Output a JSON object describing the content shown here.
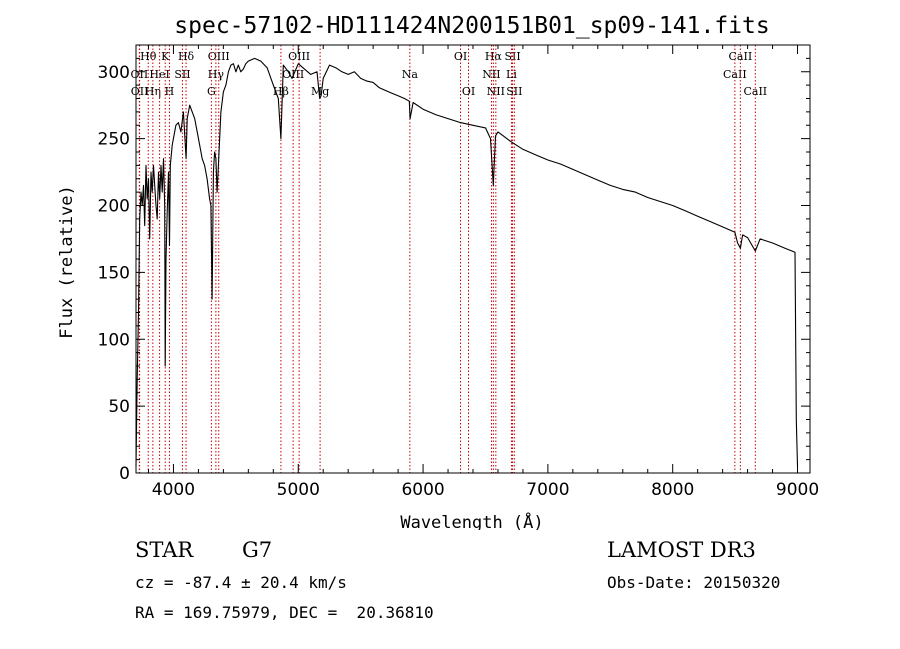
{
  "chart_data": {
    "type": "line",
    "title": "spec-57102-HD111424N200151B01_sp09-141.fits",
    "xlabel": "Wavelength (Å)",
    "ylabel": "Flux (relative)",
    "xlim": [
      3700,
      9100
    ],
    "ylim": [
      0,
      320
    ],
    "xticks": [
      4000,
      5000,
      6000,
      7000,
      8000,
      9000
    ],
    "yticks": [
      0,
      50,
      100,
      150,
      200,
      250,
      300
    ],
    "grid": false,
    "series": [
      {
        "name": "flux",
        "x": [
          3700,
          3710,
          3720,
          3730,
          3740,
          3750,
          3760,
          3770,
          3780,
          3790,
          3800,
          3810,
          3820,
          3830,
          3840,
          3850,
          3860,
          3870,
          3880,
          3890,
          3900,
          3910,
          3920,
          3930,
          3934,
          3940,
          3950,
          3960,
          3968,
          3975,
          3990,
          4000,
          4020,
          4040,
          4060,
          4080,
          4101,
          4110,
          4130,
          4150,
          4170,
          4190,
          4210,
          4230,
          4250,
          4270,
          4290,
          4300,
          4310,
          4320,
          4330,
          4340,
          4350,
          4360,
          4380,
          4400,
          4420,
          4440,
          4460,
          4480,
          4500,
          4520,
          4540,
          4560,
          4580,
          4600,
          4650,
          4700,
          4750,
          4800,
          4840,
          4861,
          4880,
          4920,
          4950,
          5000,
          5050,
          5100,
          5150,
          5172,
          5183,
          5200,
          5250,
          5300,
          5350,
          5400,
          5450,
          5500,
          5550,
          5600,
          5650,
          5700,
          5750,
          5800,
          5850,
          5890,
          5896,
          5920,
          6000,
          6100,
          6200,
          6300,
          6400,
          6500,
          6540,
          6563,
          6580,
          6600,
          6700,
          6800,
          6900,
          7000,
          7100,
          7200,
          7300,
          7400,
          7500,
          7600,
          7700,
          7800,
          7900,
          8000,
          8100,
          8200,
          8300,
          8400,
          8498,
          8520,
          8542,
          8560,
          8600,
          8662,
          8700,
          8800,
          8900,
          8980,
          8990,
          9000
        ],
        "y": [
          5,
          70,
          120,
          190,
          210,
          200,
          215,
          185,
          230,
          205,
          220,
          175,
          225,
          210,
          230,
          215,
          200,
          190,
          225,
          205,
          230,
          210,
          235,
          200,
          80,
          160,
          195,
          225,
          170,
          230,
          245,
          250,
          260,
          262,
          255,
          270,
          235,
          265,
          275,
          270,
          265,
          255,
          245,
          235,
          230,
          220,
          205,
          200,
          130,
          225,
          240,
          235,
          210,
          230,
          270,
          285,
          290,
          300,
          305,
          306,
          300,
          305,
          300,
          302,
          306,
          308,
          310,
          308,
          303,
          290,
          280,
          250,
          305,
          300,
          295,
          306,
          302,
          298,
          300,
          280,
          282,
          295,
          305,
          303,
          300,
          298,
          300,
          295,
          293,
          292,
          288,
          286,
          284,
          282,
          280,
          278,
          265,
          277,
          272,
          268,
          265,
          262,
          260,
          258,
          250,
          215,
          252,
          255,
          248,
          242,
          238,
          234,
          231,
          227,
          223,
          219,
          215,
          212,
          210,
          206,
          203,
          200,
          196,
          192,
          188,
          184,
          180,
          172,
          168,
          178,
          176,
          166,
          175,
          172,
          168,
          165,
          40,
          5
        ]
      }
    ],
    "emission_lines": [
      {
        "label": "Hθ",
        "x": 3798,
        "row": 0
      },
      {
        "label": "OII",
        "x": 3727,
        "row": 1
      },
      {
        "label": "OII",
        "x": 3729,
        "row": 2
      },
      {
        "label": "Hη",
        "x": 3835,
        "row": 2
      },
      {
        "label": "HeI",
        "x": 3889,
        "row": 1
      },
      {
        "label": "K",
        "x": 3934,
        "row": 0
      },
      {
        "label": "H",
        "x": 3968,
        "row": 2
      },
      {
        "label": "SII",
        "x": 4072,
        "row": 1
      },
      {
        "label": "Hδ",
        "x": 4101,
        "row": 0
      },
      {
        "label": "OIII",
        "x": 4363,
        "row": 0
      },
      {
        "label": "Hγ",
        "x": 4340,
        "row": 1
      },
      {
        "label": "G",
        "x": 4304,
        "row": 2
      },
      {
        "label": "Hβ",
        "x": 4861,
        "row": 2
      },
      {
        "label": "OIII",
        "x": 4959,
        "row": 1
      },
      {
        "label": "OIII",
        "x": 5007,
        "row": 0
      },
      {
        "label": "Mg",
        "x": 5175,
        "row": 2
      },
      {
        "label": "Na",
        "x": 5894,
        "row": 1
      },
      {
        "label": "OI",
        "x": 6300,
        "row": 0
      },
      {
        "label": "OI",
        "x": 6364,
        "row": 2
      },
      {
        "label": "Hα",
        "x": 6563,
        "row": 0
      },
      {
        "label": "NII",
        "x": 6548,
        "row": 1
      },
      {
        "label": "NII",
        "x": 6583,
        "row": 2
      },
      {
        "label": "SII",
        "x": 6717,
        "row": 0
      },
      {
        "label": "Li",
        "x": 6708,
        "row": 1
      },
      {
        "label": "SII",
        "x": 6731,
        "row": 2
      },
      {
        "label": "CaII",
        "x": 8498,
        "row": 1
      },
      {
        "label": "CaII",
        "x": 8542,
        "row": 0
      },
      {
        "label": "CaII",
        "x": 8662,
        "row": 2
      }
    ]
  },
  "footer": {
    "object_class": "STAR",
    "subclass": "G7",
    "survey": "LAMOST DR3",
    "cz": "cz = -87.4 ± 20.4 km/s",
    "obs_date": "Obs-Date: 20150320",
    "coords": "RA = 169.75979, DEC =  20.36810"
  },
  "colors": {
    "line": "#000000",
    "marker": "#cc0000",
    "background": "#ffffff"
  }
}
